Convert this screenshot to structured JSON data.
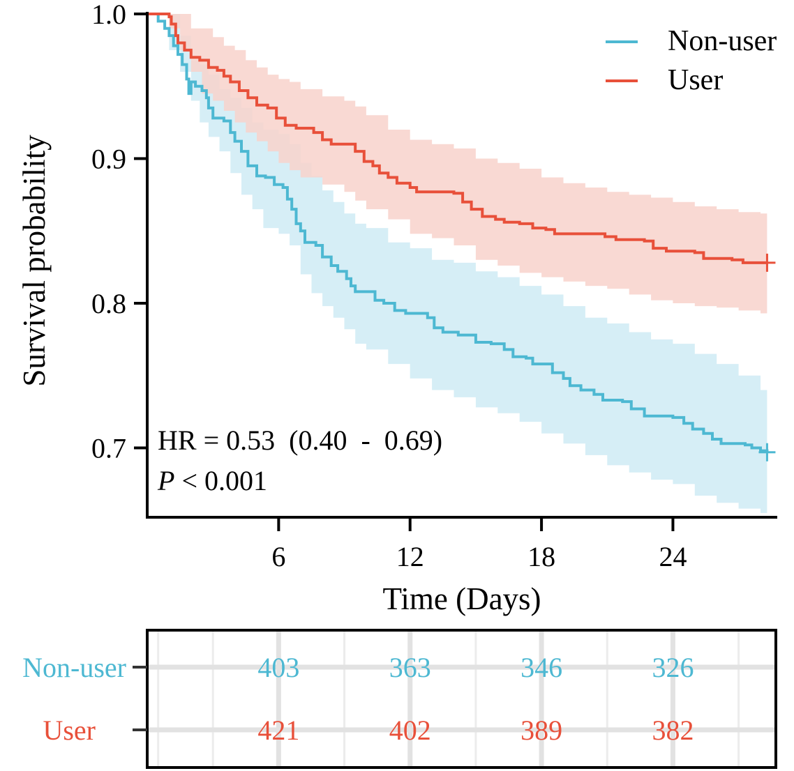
{
  "chart_data": {
    "type": "km-survival",
    "title": "",
    "xlabel": "Time (Days)",
    "ylabel": "Survival probability",
    "xlim": [
      0,
      28.7
    ],
    "ylim": [
      0.653,
      1.0
    ],
    "x_ticks": [
      6,
      12,
      18,
      24
    ],
    "x_tick_labels": [
      "6",
      "12",
      "18",
      "24"
    ],
    "y_ticks": [
      0.7,
      0.8,
      0.9,
      1.0
    ],
    "y_tick_labels": [
      "0.7",
      "0.8",
      "0.9",
      "1.0"
    ],
    "legend_position": "top-right",
    "annotation": {
      "hr_text": "HR = 0.53  (0.40  -  0.69)",
      "p_symbol": "P",
      "p_rest": " < 0.001"
    },
    "series": [
      {
        "name": "Non-user",
        "color": "#4db8d2",
        "band_color": "#d6eef6",
        "points": [
          [
            0,
            1.0
          ],
          [
            0.3,
            1.0
          ],
          [
            0.5,
            0.995
          ],
          [
            0.8,
            0.99
          ],
          [
            1.0,
            0.985
          ],
          [
            1.2,
            0.978
          ],
          [
            1.4,
            0.972
          ],
          [
            1.6,
            0.965
          ],
          [
            1.8,
            0.955
          ],
          [
            1.9,
            0.945
          ],
          [
            2.0,
            0.953
          ],
          [
            2.2,
            0.95
          ],
          [
            2.5,
            0.947
          ],
          [
            2.7,
            0.942
          ],
          [
            2.8,
            0.935
          ],
          [
            3.0,
            0.928
          ],
          [
            3.5,
            0.926
          ],
          [
            3.8,
            0.918
          ],
          [
            4.0,
            0.912
          ],
          [
            4.3,
            0.905
          ],
          [
            4.6,
            0.895
          ],
          [
            5.0,
            0.888
          ],
          [
            5.4,
            0.887
          ],
          [
            5.8,
            0.882
          ],
          [
            6.2,
            0.88
          ],
          [
            6.4,
            0.872
          ],
          [
            6.6,
            0.865
          ],
          [
            6.8,
            0.855
          ],
          [
            7.0,
            0.85
          ],
          [
            7.2,
            0.842
          ],
          [
            7.7,
            0.84
          ],
          [
            8.0,
            0.832
          ],
          [
            8.4,
            0.826
          ],
          [
            8.7,
            0.822
          ],
          [
            9.1,
            0.817
          ],
          [
            9.3,
            0.812
          ],
          [
            9.5,
            0.808
          ],
          [
            10.0,
            0.808
          ],
          [
            10.4,
            0.802
          ],
          [
            10.8,
            0.8
          ],
          [
            11.3,
            0.795
          ],
          [
            11.8,
            0.793
          ],
          [
            12.8,
            0.79
          ],
          [
            13.1,
            0.783
          ],
          [
            13.5,
            0.78
          ],
          [
            14.2,
            0.778
          ],
          [
            15.0,
            0.773
          ],
          [
            15.7,
            0.772
          ],
          [
            16.3,
            0.768
          ],
          [
            16.7,
            0.763
          ],
          [
            17.3,
            0.762
          ],
          [
            17.6,
            0.758
          ],
          [
            18.2,
            0.758
          ],
          [
            18.5,
            0.752
          ],
          [
            19.0,
            0.748
          ],
          [
            19.3,
            0.743
          ],
          [
            19.8,
            0.74
          ],
          [
            20.4,
            0.737
          ],
          [
            20.8,
            0.733
          ],
          [
            21.7,
            0.732
          ],
          [
            22.1,
            0.727
          ],
          [
            22.7,
            0.722
          ],
          [
            24.0,
            0.721
          ],
          [
            24.5,
            0.717
          ],
          [
            24.9,
            0.713
          ],
          [
            25.4,
            0.71
          ],
          [
            25.8,
            0.706
          ],
          [
            26.2,
            0.703
          ],
          [
            27.3,
            0.702
          ],
          [
            27.6,
            0.7
          ],
          [
            28.0,
            0.698
          ],
          [
            28.3,
            0.697
          ]
        ],
        "upper": [
          [
            0,
            1.0
          ],
          [
            1.0,
            1.0
          ],
          [
            1.5,
            0.985
          ],
          [
            2.0,
            0.968
          ],
          [
            2.4,
            0.965
          ],
          [
            2.8,
            0.958
          ],
          [
            3.3,
            0.948
          ],
          [
            3.8,
            0.942
          ],
          [
            4.3,
            0.935
          ],
          [
            4.8,
            0.925
          ],
          [
            5.3,
            0.92
          ],
          [
            6.0,
            0.917
          ],
          [
            6.5,
            0.91
          ],
          [
            7.0,
            0.897
          ],
          [
            7.5,
            0.888
          ],
          [
            8.0,
            0.878
          ],
          [
            8.5,
            0.87
          ],
          [
            9.0,
            0.862
          ],
          [
            9.5,
            0.855
          ],
          [
            10.0,
            0.852
          ],
          [
            11.0,
            0.842
          ],
          [
            12.0,
            0.838
          ],
          [
            13.0,
            0.83
          ],
          [
            14.0,
            0.828
          ],
          [
            15.0,
            0.822
          ],
          [
            16.0,
            0.818
          ],
          [
            17.0,
            0.812
          ],
          [
            18.0,
            0.806
          ],
          [
            19.0,
            0.798
          ],
          [
            20.0,
            0.79
          ],
          [
            21.0,
            0.786
          ],
          [
            22.0,
            0.78
          ],
          [
            23.0,
            0.775
          ],
          [
            24.0,
            0.772
          ],
          [
            25.0,
            0.765
          ],
          [
            26.0,
            0.758
          ],
          [
            27.0,
            0.75
          ],
          [
            28.0,
            0.74
          ],
          [
            28.3,
            0.738
          ]
        ],
        "lower": [
          [
            0,
            1.0
          ],
          [
            1.0,
            0.975
          ],
          [
            1.5,
            0.96
          ],
          [
            2.0,
            0.94
          ],
          [
            2.4,
            0.925
          ],
          [
            2.8,
            0.915
          ],
          [
            3.3,
            0.905
          ],
          [
            3.8,
            0.89
          ],
          [
            4.3,
            0.875
          ],
          [
            4.8,
            0.865
          ],
          [
            5.3,
            0.852
          ],
          [
            6.0,
            0.848
          ],
          [
            6.5,
            0.84
          ],
          [
            7.0,
            0.82
          ],
          [
            7.5,
            0.807
          ],
          [
            8.0,
            0.798
          ],
          [
            8.5,
            0.79
          ],
          [
            9.0,
            0.782
          ],
          [
            9.5,
            0.772
          ],
          [
            10.0,
            0.768
          ],
          [
            11.0,
            0.758
          ],
          [
            12.0,
            0.748
          ],
          [
            13.0,
            0.74
          ],
          [
            14.0,
            0.735
          ],
          [
            15.0,
            0.728
          ],
          [
            16.0,
            0.724
          ],
          [
            17.0,
            0.718
          ],
          [
            18.0,
            0.71
          ],
          [
            19.0,
            0.703
          ],
          [
            20.0,
            0.695
          ],
          [
            21.0,
            0.688
          ],
          [
            22.0,
            0.683
          ],
          [
            23.0,
            0.678
          ],
          [
            24.0,
            0.675
          ],
          [
            25.0,
            0.667
          ],
          [
            26.0,
            0.662
          ],
          [
            27.0,
            0.658
          ],
          [
            28.0,
            0.655
          ],
          [
            28.3,
            0.655
          ]
        ]
      },
      {
        "name": "User",
        "color": "#e8503a",
        "band_color": "#f8d2cb",
        "points": [
          [
            0,
            1.0
          ],
          [
            0.9,
            1.0
          ],
          [
            1.0,
            0.998
          ],
          [
            1.1,
            0.993
          ],
          [
            1.3,
            0.985
          ],
          [
            1.4,
            0.98
          ],
          [
            1.7,
            0.975
          ],
          [
            2.0,
            0.97
          ],
          [
            2.4,
            0.968
          ],
          [
            2.8,
            0.963
          ],
          [
            3.2,
            0.961
          ],
          [
            3.5,
            0.957
          ],
          [
            3.8,
            0.953
          ],
          [
            4.2,
            0.947
          ],
          [
            4.6,
            0.942
          ],
          [
            5.0,
            0.937
          ],
          [
            5.5,
            0.935
          ],
          [
            5.9,
            0.928
          ],
          [
            6.3,
            0.923
          ],
          [
            6.8,
            0.921
          ],
          [
            7.6,
            0.918
          ],
          [
            8.0,
            0.913
          ],
          [
            8.4,
            0.91
          ],
          [
            9.5,
            0.905
          ],
          [
            9.9,
            0.898
          ],
          [
            10.3,
            0.895
          ],
          [
            10.6,
            0.89
          ],
          [
            11.0,
            0.887
          ],
          [
            11.4,
            0.883
          ],
          [
            12.0,
            0.88
          ],
          [
            12.3,
            0.877
          ],
          [
            14.0,
            0.876
          ],
          [
            14.4,
            0.87
          ],
          [
            14.8,
            0.865
          ],
          [
            15.3,
            0.86
          ],
          [
            15.9,
            0.858
          ],
          [
            16.3,
            0.856
          ],
          [
            17.0,
            0.855
          ],
          [
            17.6,
            0.852
          ],
          [
            18.2,
            0.851
          ],
          [
            18.6,
            0.848
          ],
          [
            20.9,
            0.846
          ],
          [
            21.4,
            0.844
          ],
          [
            22.7,
            0.843
          ],
          [
            23.1,
            0.838
          ],
          [
            23.7,
            0.836
          ],
          [
            25.0,
            0.835
          ],
          [
            25.4,
            0.831
          ],
          [
            26.7,
            0.83
          ],
          [
            27.2,
            0.828
          ],
          [
            28.3,
            0.828
          ]
        ],
        "upper": [
          [
            0,
            1.0
          ],
          [
            1.0,
            1.0
          ],
          [
            1.5,
            1.0
          ],
          [
            2.0,
            0.99
          ],
          [
            2.5,
            0.99
          ],
          [
            3.0,
            0.984
          ],
          [
            3.5,
            0.978
          ],
          [
            4.0,
            0.975
          ],
          [
            4.5,
            0.968
          ],
          [
            5.0,
            0.963
          ],
          [
            5.5,
            0.958
          ],
          [
            6.0,
            0.955
          ],
          [
            6.5,
            0.953
          ],
          [
            7.0,
            0.948
          ],
          [
            8.0,
            0.943
          ],
          [
            9.0,
            0.94
          ],
          [
            9.5,
            0.936
          ],
          [
            10.0,
            0.93
          ],
          [
            11.0,
            0.92
          ],
          [
            12.0,
            0.913
          ],
          [
            13.0,
            0.91
          ],
          [
            14.0,
            0.907
          ],
          [
            15.0,
            0.9
          ],
          [
            16.0,
            0.897
          ],
          [
            17.0,
            0.893
          ],
          [
            18.0,
            0.887
          ],
          [
            19.0,
            0.883
          ],
          [
            20.0,
            0.88
          ],
          [
            21.0,
            0.877
          ],
          [
            22.0,
            0.875
          ],
          [
            23.0,
            0.873
          ],
          [
            24.0,
            0.87
          ],
          [
            25.0,
            0.867
          ],
          [
            26.0,
            0.865
          ],
          [
            27.0,
            0.863
          ],
          [
            28.0,
            0.862
          ],
          [
            28.3,
            0.862
          ]
        ],
        "lower": [
          [
            0,
            1.0
          ],
          [
            1.0,
            0.99
          ],
          [
            1.5,
            0.975
          ],
          [
            2.0,
            0.96
          ],
          [
            2.5,
            0.945
          ],
          [
            3.0,
            0.94
          ],
          [
            3.5,
            0.933
          ],
          [
            4.0,
            0.925
          ],
          [
            4.5,
            0.918
          ],
          [
            5.0,
            0.912
          ],
          [
            5.5,
            0.905
          ],
          [
            6.0,
            0.897
          ],
          [
            6.5,
            0.892
          ],
          [
            7.0,
            0.887
          ],
          [
            8.0,
            0.882
          ],
          [
            9.0,
            0.877
          ],
          [
            9.5,
            0.871
          ],
          [
            10.0,
            0.865
          ],
          [
            11.0,
            0.858
          ],
          [
            12.0,
            0.848
          ],
          [
            13.0,
            0.845
          ],
          [
            14.0,
            0.84
          ],
          [
            15.0,
            0.83
          ],
          [
            16.0,
            0.826
          ],
          [
            17.0,
            0.821
          ],
          [
            18.0,
            0.818
          ],
          [
            19.0,
            0.815
          ],
          [
            20.0,
            0.812
          ],
          [
            21.0,
            0.81
          ],
          [
            22.0,
            0.806
          ],
          [
            23.0,
            0.802
          ],
          [
            24.0,
            0.8
          ],
          [
            25.0,
            0.798
          ],
          [
            26.0,
            0.797
          ],
          [
            27.0,
            0.795
          ],
          [
            28.0,
            0.793
          ],
          [
            28.3,
            0.793
          ]
        ]
      }
    ],
    "risk_table": {
      "time_points": [
        6,
        12,
        18,
        24
      ],
      "rows": [
        {
          "name": "Non-user",
          "color": "#4db8d2",
          "values": [
            "403",
            "363",
            "346",
            "326"
          ]
        },
        {
          "name": "User",
          "color": "#e8503a",
          "values": [
            "421",
            "402",
            "389",
            "382"
          ]
        }
      ]
    }
  }
}
